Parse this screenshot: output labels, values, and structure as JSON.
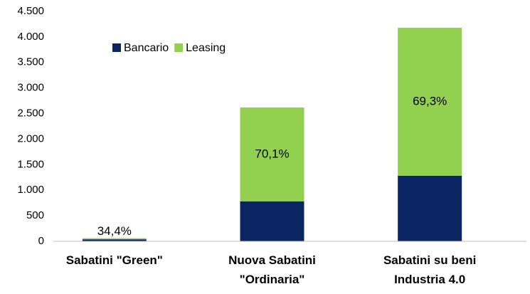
{
  "chart_data": {
    "type": "stacked_bar",
    "categories": [
      "Sabatini \"Green\"",
      "Nuova Sabatini \"Ordinaria\"",
      "Sabatini su beni Industria 4.0"
    ],
    "series": [
      {
        "name": "Bancario",
        "color": "#0b2462",
        "values": [
          39,
          783,
          1283
        ]
      },
      {
        "name": "Leasing",
        "color": "#92d050",
        "values": [
          21,
          1837,
          2897
        ]
      }
    ],
    "share_labels": [
      "34,4%",
      "70,1%",
      "69,3%"
    ],
    "ylim": [
      0,
      4500
    ],
    "yticks": [
      0,
      500,
      {
        "value": 1000,
        "label": "1.000"
      },
      {
        "value": 1500,
        "label": "1.500"
      },
      {
        "value": 2000,
        "label": "2.000"
      },
      {
        "value": 2500,
        "label": "2.500"
      },
      {
        "value": 3000,
        "label": "3.000"
      },
      {
        "value": 3500,
        "label": "3.500"
      },
      {
        "value": 4000,
        "label": "4.000"
      },
      {
        "value": 4500,
        "label": "4.500"
      }
    ],
    "grid": false,
    "legend": "top-left"
  }
}
